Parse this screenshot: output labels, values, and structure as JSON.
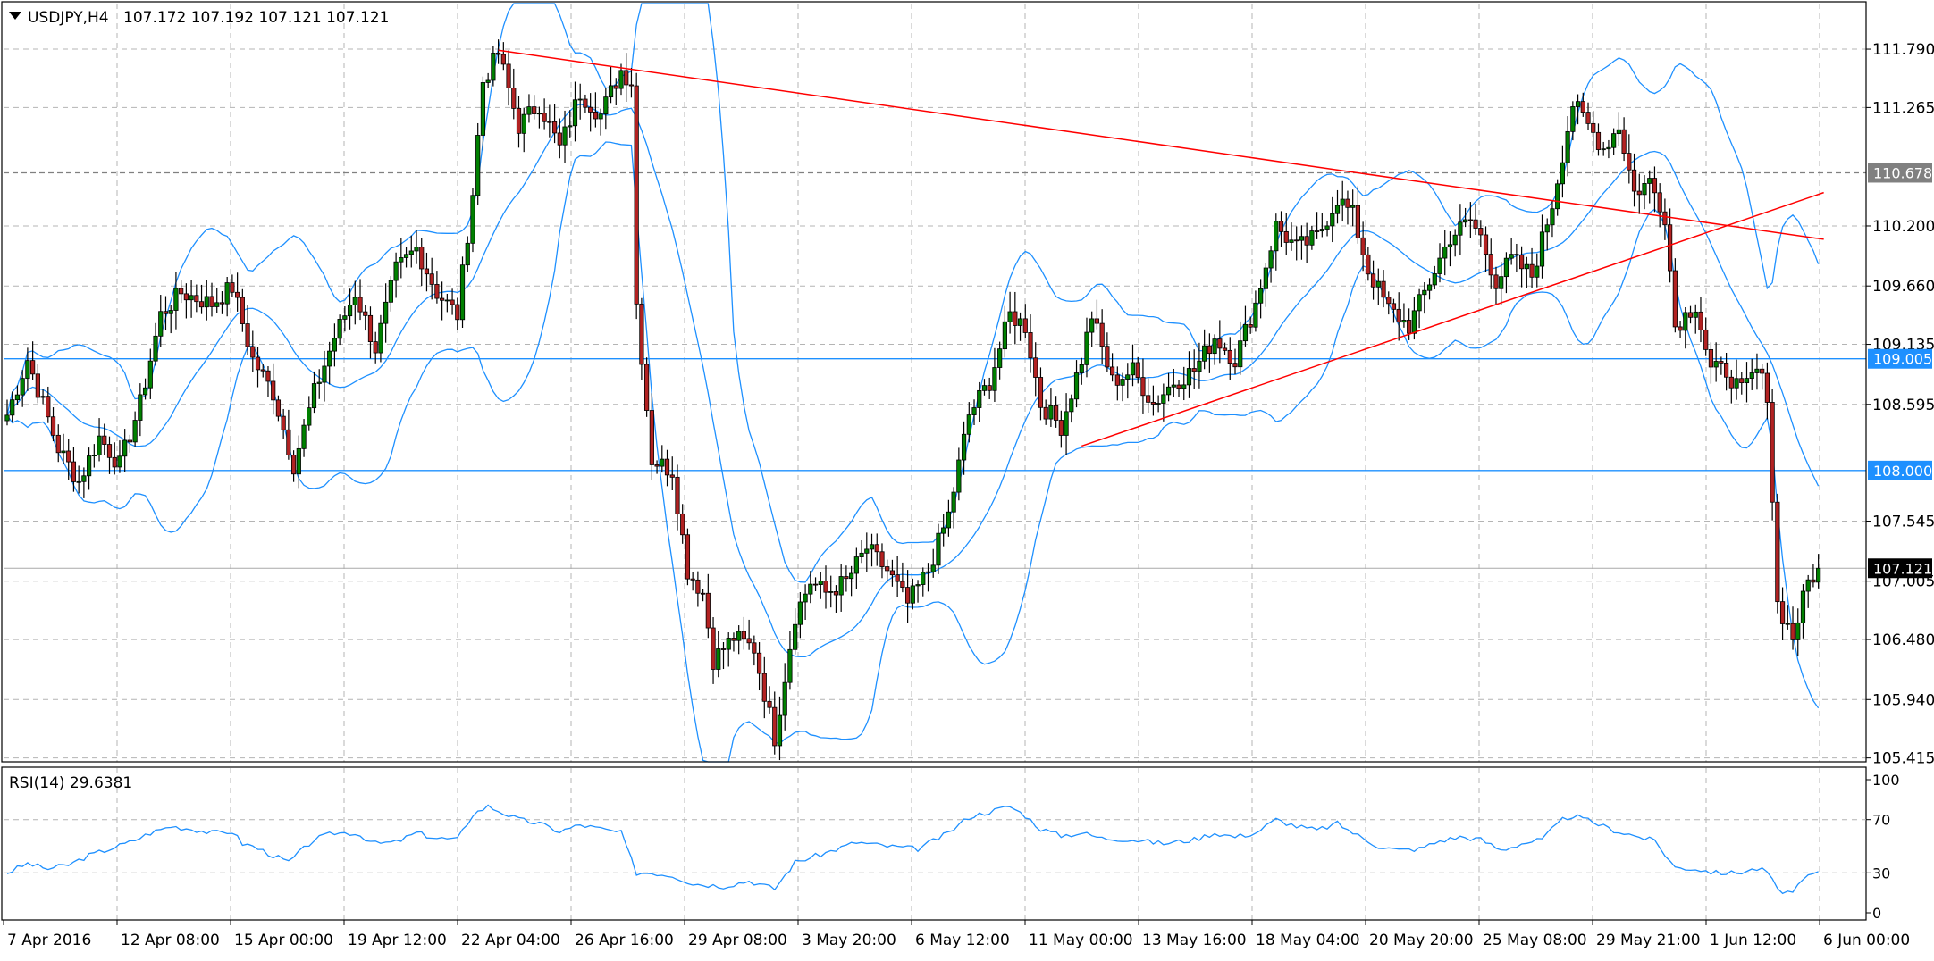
{
  "chart_data": {
    "type": "candlestick",
    "title": "USDJPY,H4",
    "ohlc_text": "107.172 107.192 107.121 107.121",
    "y_ticks": [
      "111.790",
      "111.265",
      "110.200",
      "109.660",
      "109.135",
      "108.595",
      "107.545",
      "107.005",
      "106.480",
      "105.940",
      "105.415"
    ],
    "x_ticks": [
      "7 Apr 2016",
      "12 Apr 08:00",
      "15 Apr 00:00",
      "19 Apr 12:00",
      "22 Apr 04:00",
      "26 Apr 16:00",
      "29 Apr 08:00",
      "3 May 20:00",
      "6 May 12:00",
      "11 May 00:00",
      "13 May 16:00",
      "18 May 04:00",
      "20 May 20:00",
      "25 May 08:00",
      "29 May 21:00",
      "1 Jun 12:00",
      "6 Jun 00:00"
    ],
    "ylim": [
      105.38,
      112.2
    ],
    "current_price": "107.121",
    "horizontal_levels": [
      {
        "value": 110.678,
        "label": "110.678",
        "color": "#808080",
        "style": "dashed"
      },
      {
        "value": 109.005,
        "label": "109.005",
        "color": "#1e90ff",
        "style": "solid"
      },
      {
        "value": 108.0,
        "label": "108.000",
        "color": "#1e90ff",
        "style": "solid"
      }
    ],
    "trendlines": [
      {
        "name": "resistance",
        "color": "#ff0000",
        "from": {
          "bar": 96,
          "price": 111.78
        },
        "to": {
          "bar": 354,
          "price": 110.08
        }
      },
      {
        "name": "support",
        "color": "#ff0000",
        "from": {
          "bar": 210,
          "price": 108.22
        },
        "to": {
          "bar": 354,
          "price": 110.5
        }
      }
    ],
    "indicator": {
      "name": "Bollinger Bands",
      "color": "#1e90ff"
    },
    "ohlc_anchors": [
      [
        0,
        108.5
      ],
      [
        4,
        109.0
      ],
      [
        10,
        108.2
      ],
      [
        14,
        107.9
      ],
      [
        18,
        108.3
      ],
      [
        22,
        108.05
      ],
      [
        26,
        108.6
      ],
      [
        30,
        109.4
      ],
      [
        34,
        109.6
      ],
      [
        40,
        109.5
      ],
      [
        44,
        109.65
      ],
      [
        48,
        109.0
      ],
      [
        52,
        108.7
      ],
      [
        56,
        108.05
      ],
      [
        60,
        108.7
      ],
      [
        64,
        109.2
      ],
      [
        68,
        109.6
      ],
      [
        72,
        109.1
      ],
      [
        76,
        109.8
      ],
      [
        80,
        110.0
      ],
      [
        84,
        109.6
      ],
      [
        88,
        109.4
      ],
      [
        91,
        110.5
      ],
      [
        93,
        111.5
      ],
      [
        96,
        111.75
      ],
      [
        100,
        111.1
      ],
      [
        104,
        111.3
      ],
      [
        108,
        110.9
      ],
      [
        112,
        111.4
      ],
      [
        116,
        111.2
      ],
      [
        120,
        111.6
      ],
      [
        122,
        111.5
      ],
      [
        123,
        109.5
      ],
      [
        126,
        108.1
      ],
      [
        130,
        108.0
      ],
      [
        133,
        107.1
      ],
      [
        136,
        106.9
      ],
      [
        138,
        106.3
      ],
      [
        142,
        106.5
      ],
      [
        146,
        106.4
      ],
      [
        150,
        105.6
      ],
      [
        154,
        106.7
      ],
      [
        157,
        107.0
      ],
      [
        160,
        106.9
      ],
      [
        164,
        107.0
      ],
      [
        168,
        107.3
      ],
      [
        172,
        107.1
      ],
      [
        176,
        106.8
      ],
      [
        180,
        107.1
      ],
      [
        184,
        107.6
      ],
      [
        188,
        108.5
      ],
      [
        192,
        108.8
      ],
      [
        196,
        109.4
      ],
      [
        199,
        109.3
      ],
      [
        202,
        108.6
      ],
      [
        206,
        108.4
      ],
      [
        210,
        109.0
      ],
      [
        212,
        109.4
      ],
      [
        216,
        108.8
      ],
      [
        220,
        108.9
      ],
      [
        224,
        108.6
      ],
      [
        228,
        108.8
      ],
      [
        232,
        108.9
      ],
      [
        236,
        109.2
      ],
      [
        240,
        109.0
      ],
      [
        244,
        109.5
      ],
      [
        248,
        110.2
      ],
      [
        252,
        110.0
      ],
      [
        256,
        110.1
      ],
      [
        260,
        110.45
      ],
      [
        263,
        110.3
      ],
      [
        266,
        109.8
      ],
      [
        270,
        109.45
      ],
      [
        274,
        109.3
      ],
      [
        278,
        109.7
      ],
      [
        282,
        110.1
      ],
      [
        286,
        110.25
      ],
      [
        288,
        110.1
      ],
      [
        291,
        109.7
      ],
      [
        294,
        109.9
      ],
      [
        298,
        109.75
      ],
      [
        302,
        110.4
      ],
      [
        306,
        111.3
      ],
      [
        309,
        111.1
      ],
      [
        312,
        110.9
      ],
      [
        315,
        111.1
      ],
      [
        318,
        110.5
      ],
      [
        321,
        110.6
      ],
      [
        324,
        110.3
      ],
      [
        326,
        109.3
      ],
      [
        330,
        109.5
      ],
      [
        333,
        108.9
      ],
      [
        336,
        108.9
      ],
      [
        339,
        108.7
      ],
      [
        342,
        108.9
      ],
      [
        344,
        108.7
      ],
      [
        346,
        106.8
      ],
      [
        349,
        106.5
      ],
      [
        352,
        107.0
      ],
      [
        354,
        107.12
      ]
    ],
    "subchart": {
      "title": "RSI(14) 29.6381",
      "type": "line",
      "color": "#1e90ff",
      "y_ticks": [
        "100",
        "70",
        "30",
        "0"
      ],
      "levels": [
        70,
        30
      ],
      "ylim": [
        0,
        100
      ],
      "series": [
        [
          0,
          30
        ],
        [
          4,
          37
        ],
        [
          8,
          33
        ],
        [
          12,
          36
        ],
        [
          16,
          43
        ],
        [
          20,
          48
        ],
        [
          24,
          53
        ],
        [
          28,
          60
        ],
        [
          32,
          65
        ],
        [
          36,
          63
        ],
        [
          40,
          60
        ],
        [
          44,
          61
        ],
        [
          46,
          52
        ],
        [
          48,
          50
        ],
        [
          52,
          43
        ],
        [
          55,
          38
        ],
        [
          60,
          55
        ],
        [
          64,
          60
        ],
        [
          68,
          60
        ],
        [
          72,
          52
        ],
        [
          76,
          53
        ],
        [
          80,
          60
        ],
        [
          84,
          56
        ],
        [
          88,
          55
        ],
        [
          91,
          74
        ],
        [
          94,
          80
        ],
        [
          97,
          75
        ],
        [
          100,
          70
        ],
        [
          104,
          67
        ],
        [
          108,
          61
        ],
        [
          112,
          66
        ],
        [
          116,
          63
        ],
        [
          120,
          60
        ],
        [
          123,
          30
        ],
        [
          126,
          30
        ],
        [
          130,
          28
        ],
        [
          134,
          22
        ],
        [
          140,
          20
        ],
        [
          145,
          24
        ],
        [
          150,
          18
        ],
        [
          154,
          38
        ],
        [
          160,
          45
        ],
        [
          166,
          53
        ],
        [
          172,
          50
        ],
        [
          178,
          48
        ],
        [
          184,
          60
        ],
        [
          188,
          72
        ],
        [
          192,
          76
        ],
        [
          196,
          80
        ],
        [
          199,
          73
        ],
        [
          202,
          63
        ],
        [
          206,
          58
        ],
        [
          210,
          60
        ],
        [
          214,
          56
        ],
        [
          220,
          55
        ],
        [
          226,
          52
        ],
        [
          232,
          55
        ],
        [
          236,
          60
        ],
        [
          240,
          57
        ],
        [
          244,
          60
        ],
        [
          248,
          70
        ],
        [
          252,
          65
        ],
        [
          256,
          62
        ],
        [
          260,
          67
        ],
        [
          264,
          58
        ],
        [
          268,
          50
        ],
        [
          272,
          47
        ],
        [
          276,
          48
        ],
        [
          280,
          54
        ],
        [
          284,
          57
        ],
        [
          288,
          55
        ],
        [
          292,
          47
        ],
        [
          296,
          52
        ],
        [
          300,
          55
        ],
        [
          304,
          70
        ],
        [
          306,
          73
        ],
        [
          310,
          68
        ],
        [
          314,
          62
        ],
        [
          318,
          58
        ],
        [
          322,
          54
        ],
        [
          326,
          34
        ],
        [
          330,
          33
        ],
        [
          334,
          30
        ],
        [
          338,
          30
        ],
        [
          342,
          33
        ],
        [
          344,
          31
        ],
        [
          346,
          17
        ],
        [
          349,
          15
        ],
        [
          352,
          28
        ],
        [
          354,
          29.6
        ]
      ]
    }
  }
}
